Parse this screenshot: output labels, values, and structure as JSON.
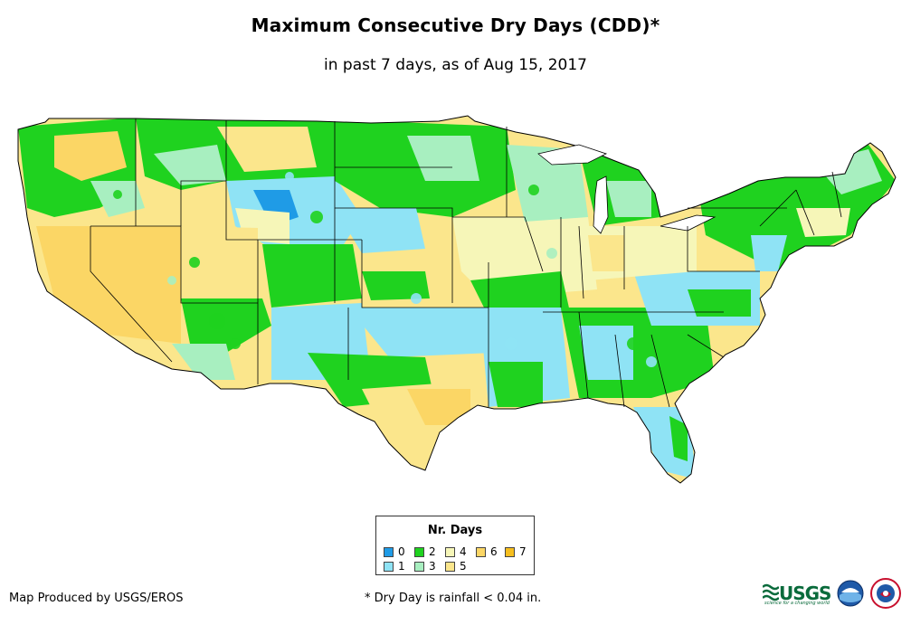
{
  "header": {
    "title": "Maximum Consecutive Dry Days (CDD)*",
    "subtitle": "in past 7 days, as of Aug 15, 2017"
  },
  "legend": {
    "title": "Nr. Days",
    "items": [
      {
        "label": "0",
        "color": "#1f9be6"
      },
      {
        "label": "1",
        "color": "#8fe3f5"
      },
      {
        "label": "2",
        "color": "#1fd21f"
      },
      {
        "label": "3",
        "color": "#a8efc0"
      },
      {
        "label": "4",
        "color": "#f6f6b8"
      },
      {
        "label": "5",
        "color": "#fbe68c"
      },
      {
        "label": "6",
        "color": "#fbd665"
      },
      {
        "label": "7",
        "color": "#f6be1e"
      }
    ]
  },
  "footer": {
    "credit": "Map Produced by USGS/EROS",
    "footnote": "* Dry Day is rainfall < 0.04 in.",
    "usgs_logo_text": "USGS",
    "usgs_tagline": "science for a changing world"
  },
  "map": {
    "region": "Contiguous United States",
    "colors": {
      "border": "#000000",
      "water": "#ffffff"
    }
  }
}
